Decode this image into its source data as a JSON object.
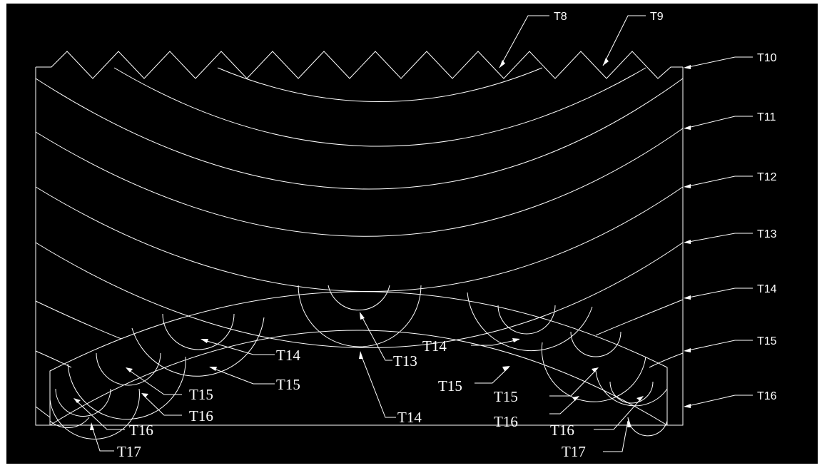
{
  "labels": {
    "top": [
      {
        "id": "t8",
        "text": "T8"
      },
      {
        "id": "t9",
        "text": "T9"
      }
    ],
    "right": [
      {
        "id": "t10",
        "text": "T10"
      },
      {
        "id": "t11",
        "text": "T11"
      },
      {
        "id": "t12",
        "text": "T12"
      },
      {
        "id": "t13",
        "text": "T13"
      },
      {
        "id": "t14",
        "text": "T14"
      },
      {
        "id": "t15",
        "text": "T15"
      },
      {
        "id": "t16",
        "text": "T16"
      }
    ],
    "inner": [
      {
        "id": "c-t13",
        "text": "T13"
      },
      {
        "id": "c-t14",
        "text": "T14"
      },
      {
        "id": "l-t14",
        "text": "T14"
      },
      {
        "id": "l-t15a",
        "text": "T15"
      },
      {
        "id": "l-t15b",
        "text": "T15"
      },
      {
        "id": "l-t16a",
        "text": "T16"
      },
      {
        "id": "l-t16b",
        "text": "T16"
      },
      {
        "id": "l-t17",
        "text": "T17"
      },
      {
        "id": "r-t14",
        "text": "T14"
      },
      {
        "id": "r-t15a",
        "text": "T15"
      },
      {
        "id": "r-t15b",
        "text": "T15"
      },
      {
        "id": "r-t16a",
        "text": "T16"
      },
      {
        "id": "r-t16b",
        "text": "T16"
      },
      {
        "id": "r-t17",
        "text": "T17"
      }
    ]
  }
}
